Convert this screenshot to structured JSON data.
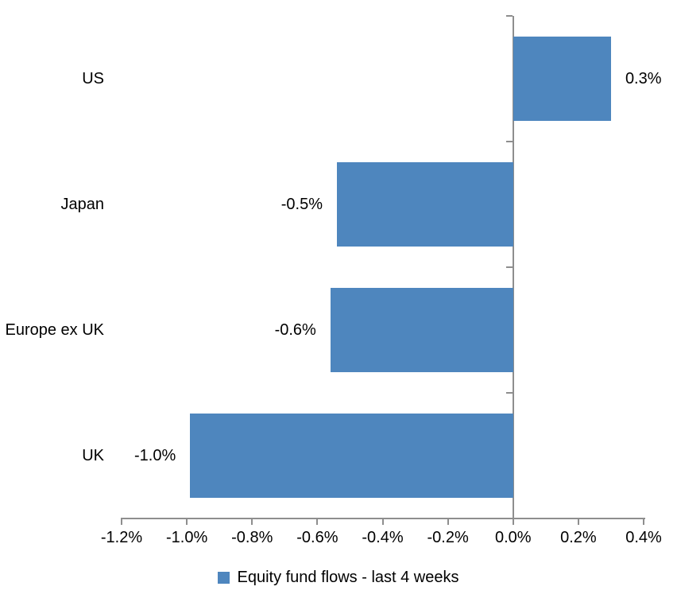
{
  "chart_data": {
    "type": "bar",
    "orientation": "horizontal",
    "title": "",
    "xlabel": "",
    "ylabel": "",
    "grid": false,
    "legend_position": "bottom",
    "categories": [
      "US",
      "Japan",
      "Europe ex UK",
      "UK"
    ],
    "series": [
      {
        "name": "Equity fund flows - last 4 weeks",
        "values": [
          0.3,
          -0.54,
          -0.56,
          -0.99
        ],
        "data_labels": [
          "0.3%",
          "-0.5%",
          "-0.6%",
          "-1.0%"
        ]
      }
    ],
    "x_axis": {
      "min": -1.2,
      "max": 0.4,
      "tick_values": [
        -1.2,
        -1.0,
        -0.8,
        -0.6,
        -0.4,
        -0.2,
        0.0,
        0.2,
        0.4
      ],
      "tick_labels": [
        "-1.2%",
        "-1.0%",
        "-0.8%",
        "-0.6%",
        "-0.4%",
        "-0.2%",
        "0.0%",
        "0.2%",
        "0.4%"
      ]
    },
    "colors": {
      "bar": "#4E86BE",
      "axis": "#8E8E8E",
      "text": "#000000",
      "background": "#FFFFFF"
    }
  },
  "legend": {
    "label": "Equity fund flows - last 4 weeks",
    "swatch_color": "#4E86BE"
  }
}
